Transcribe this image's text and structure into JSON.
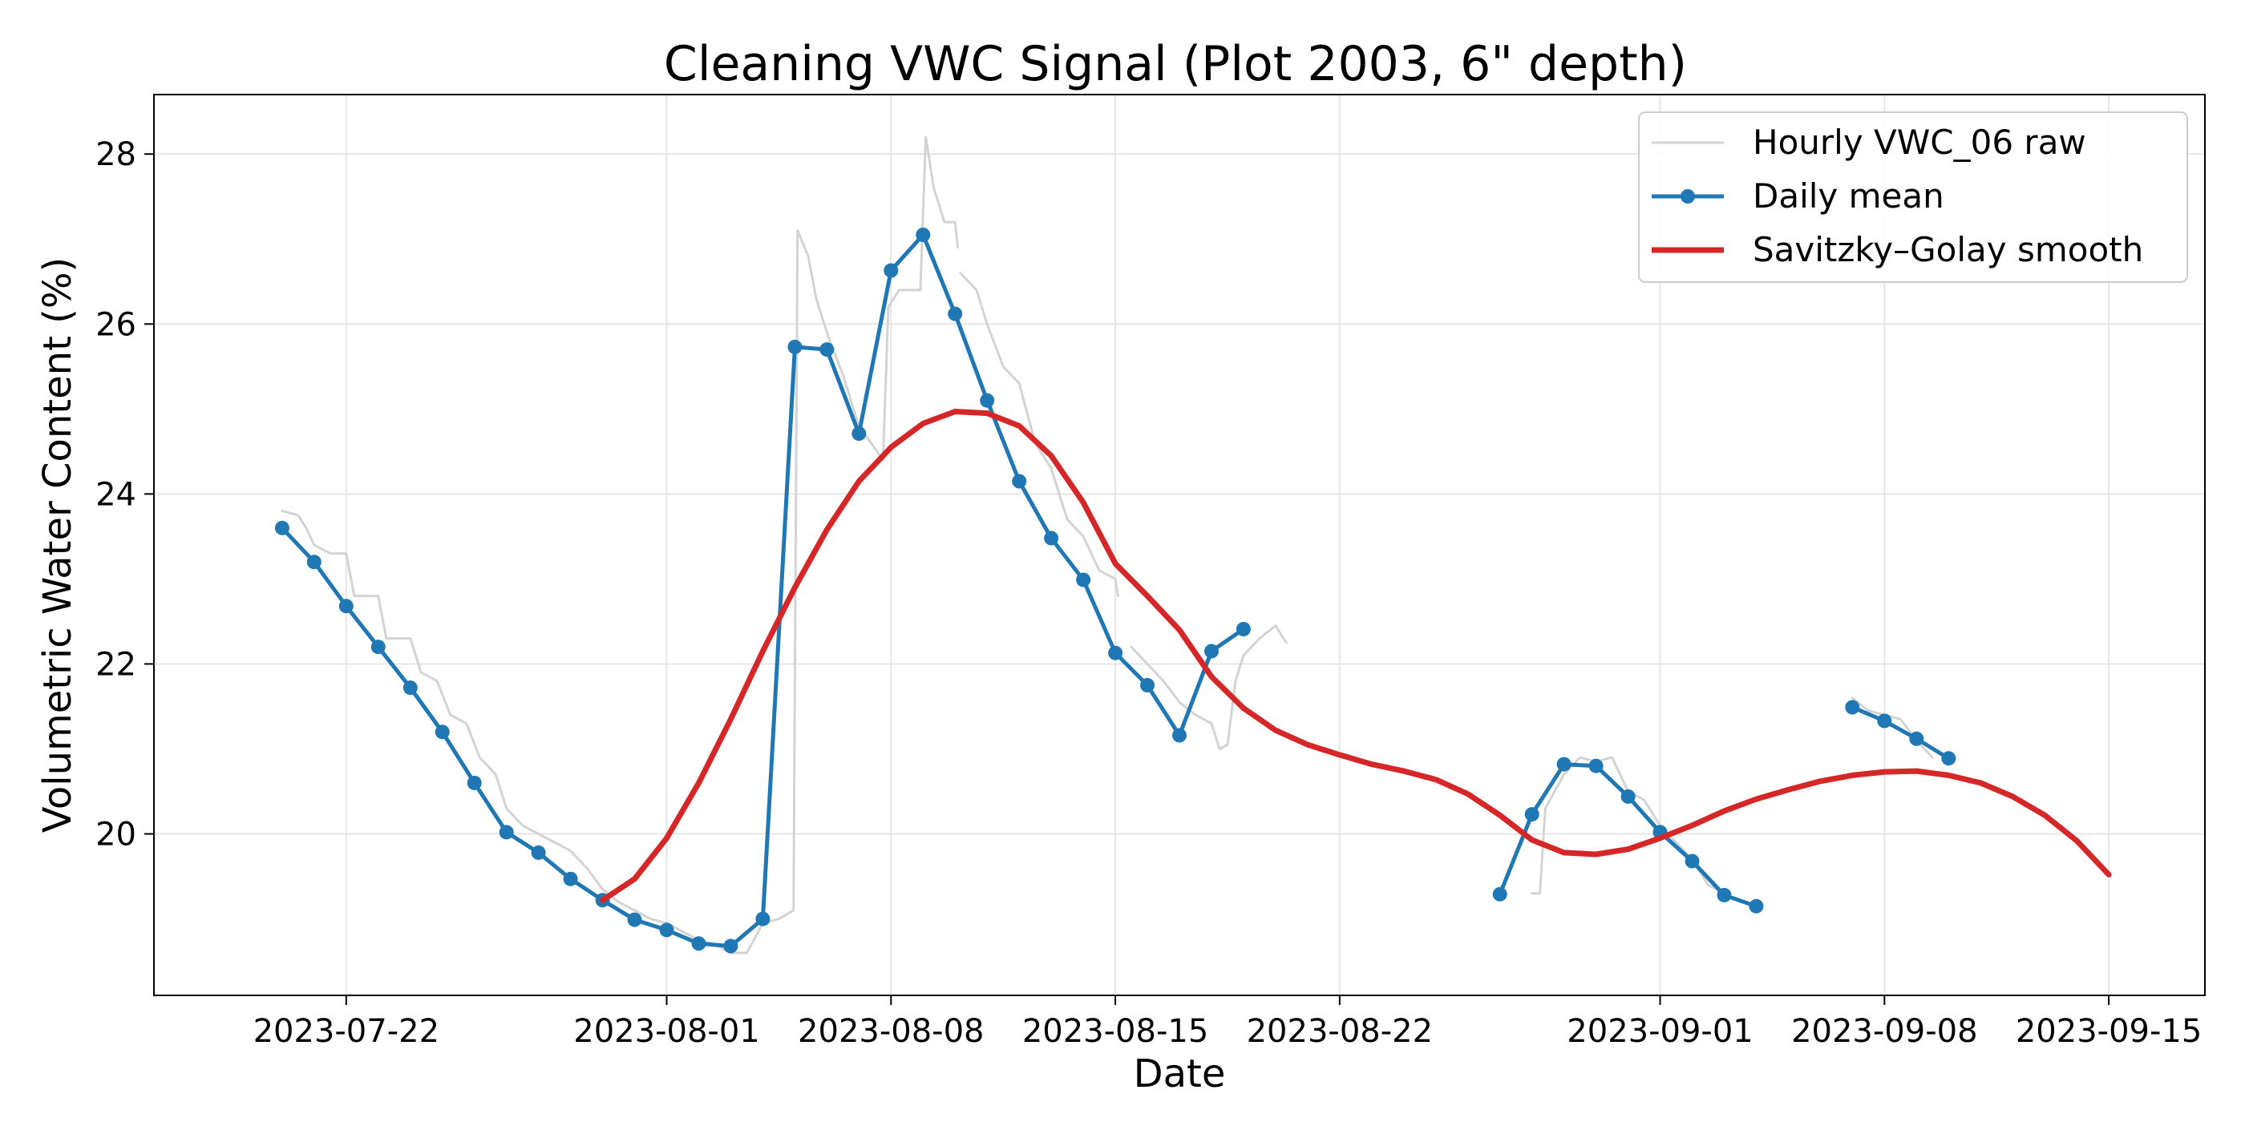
{
  "chart_data": {
    "type": "line",
    "title": "Cleaning VWC Signal (Plot 2003, 6\" depth)",
    "xlabel": "Date",
    "ylabel": "Volumetric Water Content (%)",
    "x_range": [
      "2023-07-16",
      "2023-09-18"
    ],
    "ylim": [
      18.1,
      28.7
    ],
    "yticks": [
      20,
      22,
      24,
      26,
      28
    ],
    "xticks": [
      "2023-07-22",
      "2023-08-01",
      "2023-08-08",
      "2023-08-15",
      "2023-08-22",
      "2023-09-01",
      "2023-09-08",
      "2023-09-15"
    ],
    "grid": true,
    "legend_position": "top-right",
    "series": [
      {
        "name": "Hourly VWC_06 raw",
        "style": "thin-line",
        "color": "#d3d3d3",
        "segments": [
          [
            [
              "2023-07-20T00",
              23.8
            ],
            [
              "2023-07-20T12",
              23.75
            ],
            [
              "2023-07-20T18",
              23.6
            ],
            [
              "2023-07-21T00",
              23.4
            ],
            [
              "2023-07-21T12",
              23.3
            ],
            [
              "2023-07-22T00",
              23.3
            ],
            [
              "2023-07-22T06",
              22.8
            ],
            [
              "2023-07-22T12",
              22.8
            ],
            [
              "2023-07-23T00",
              22.8
            ],
            [
              "2023-07-23T06",
              22.3
            ],
            [
              "2023-07-24T00",
              22.3
            ],
            [
              "2023-07-24T08",
              21.9
            ],
            [
              "2023-07-24T20",
              21.8
            ],
            [
              "2023-07-25T06",
              21.4
            ],
            [
              "2023-07-25T18",
              21.3
            ],
            [
              "2023-07-26T04",
              20.9
            ],
            [
              "2023-07-26T16",
              20.7
            ],
            [
              "2023-07-27T00",
              20.3
            ],
            [
              "2023-07-27T12",
              20.1
            ],
            [
              "2023-07-28T00",
              20.0
            ],
            [
              "2023-07-28T12",
              19.9
            ],
            [
              "2023-07-29T00",
              19.8
            ],
            [
              "2023-07-29T12",
              19.6
            ],
            [
              "2023-07-30T00",
              19.35
            ],
            [
              "2023-07-30T12",
              19.2
            ],
            [
              "2023-07-31T00",
              19.1
            ],
            [
              "2023-07-31T12",
              19.0
            ],
            [
              "2023-08-01T00",
              18.95
            ],
            [
              "2023-08-01T12",
              18.85
            ],
            [
              "2023-08-02T00",
              18.75
            ],
            [
              "2023-08-02T12",
              18.7
            ],
            [
              "2023-08-03T00",
              18.6
            ],
            [
              "2023-08-03T12",
              18.6
            ],
            [
              "2023-08-04T00",
              18.95
            ],
            [
              "2023-08-04T12",
              19.0
            ],
            [
              "2023-08-04T23",
              19.1
            ],
            [
              "2023-08-05T02",
              27.1
            ],
            [
              "2023-08-05T10",
              26.8
            ],
            [
              "2023-08-05T16",
              26.3
            ],
            [
              "2023-08-06T00",
              25.9
            ],
            [
              "2023-08-06T12",
              25.4
            ],
            [
              "2023-08-07T00",
              24.8
            ],
            [
              "2023-08-07T18",
              24.4
            ],
            [
              "2023-08-07T22",
              26.2
            ],
            [
              "2023-08-08T06",
              26.4
            ],
            [
              "2023-08-08T22",
              26.4
            ],
            [
              "2023-08-09T02",
              28.2
            ],
            [
              "2023-08-09T08",
              27.6
            ],
            [
              "2023-08-09T16",
              27.2
            ],
            [
              "2023-08-10T00",
              27.2
            ],
            [
              "2023-08-10T02",
              26.9
            ]
          ],
          [
            [
              "2023-08-10T04",
              26.6
            ],
            [
              "2023-08-10T16",
              26.4
            ],
            [
              "2023-08-11T00",
              26.0
            ],
            [
              "2023-08-11T12",
              25.5
            ],
            [
              "2023-08-12T00",
              25.3
            ],
            [
              "2023-08-12T12",
              24.6
            ],
            [
              "2023-08-13T00",
              24.3
            ],
            [
              "2023-08-13T12",
              23.7
            ],
            [
              "2023-08-14T00",
              23.5
            ],
            [
              "2023-08-14T12",
              23.1
            ],
            [
              "2023-08-15T00",
              23.0
            ],
            [
              "2023-08-15T02",
              22.8
            ]
          ],
          [
            [
              "2023-08-15T12",
              22.2
            ],
            [
              "2023-08-16T00",
              22.0
            ],
            [
              "2023-08-16T12",
              21.8
            ],
            [
              "2023-08-17T00",
              21.55
            ],
            [
              "2023-08-17T12",
              21.4
            ],
            [
              "2023-08-18T00",
              21.3
            ],
            [
              "2023-08-18T06",
              21.0
            ],
            [
              "2023-08-18T12",
              21.05
            ],
            [
              "2023-08-18T18",
              21.8
            ],
            [
              "2023-08-19T00",
              22.1
            ],
            [
              "2023-08-19T12",
              22.3
            ],
            [
              "2023-08-20T00",
              22.45
            ],
            [
              "2023-08-20T08",
              22.25
            ]
          ],
          [
            [
              "2023-08-28T00",
              19.3
            ],
            [
              "2023-08-28T06",
              19.3
            ],
            [
              "2023-08-28T10",
              20.3
            ],
            [
              "2023-08-29T00",
              20.7
            ],
            [
              "2023-08-29T12",
              20.9
            ],
            [
              "2023-08-30T00",
              20.85
            ],
            [
              "2023-08-30T12",
              20.9
            ],
            [
              "2023-08-31T00",
              20.5
            ],
            [
              "2023-08-31T12",
              20.4
            ],
            [
              "2023-09-01T00",
              20.1
            ],
            [
              "2023-09-01T12",
              19.9
            ],
            [
              "2023-09-02T00",
              19.7
            ],
            [
              "2023-09-02T12",
              19.4
            ],
            [
              "2023-09-03T00",
              19.3
            ]
          ],
          [
            [
              "2023-09-07T00",
              21.6
            ],
            [
              "2023-09-07T12",
              21.45
            ],
            [
              "2023-09-08T00",
              21.4
            ],
            [
              "2023-09-08T12",
              21.35
            ],
            [
              "2023-09-09T00",
              21.1
            ],
            [
              "2023-09-09T12",
              20.9
            ]
          ]
        ]
      },
      {
        "name": "Daily mean",
        "style": "line-markers",
        "color": "#1f77b4",
        "segments": [
          [
            [
              "2023-07-20",
              23.6
            ],
            [
              "2023-07-21",
              23.2
            ],
            [
              "2023-07-22",
              22.68
            ],
            [
              "2023-07-23",
              22.2
            ],
            [
              "2023-07-24",
              21.72
            ],
            [
              "2023-07-25",
              21.2
            ],
            [
              "2023-07-26",
              20.6
            ],
            [
              "2023-07-27",
              20.02
            ],
            [
              "2023-07-28",
              19.78
            ],
            [
              "2023-07-29",
              19.47
            ],
            [
              "2023-07-30",
              19.22
            ],
            [
              "2023-07-31",
              18.99
            ],
            [
              "2023-08-01",
              18.87
            ],
            [
              "2023-08-02",
              18.71
            ],
            [
              "2023-08-03",
              18.68
            ],
            [
              "2023-08-04",
              19.0
            ],
            [
              "2023-08-05",
              25.73
            ],
            [
              "2023-08-06",
              25.7
            ],
            [
              "2023-08-07",
              24.71
            ],
            [
              "2023-08-08",
              26.63
            ],
            [
              "2023-08-09",
              27.05
            ],
            [
              "2023-08-10",
              26.12
            ],
            [
              "2023-08-11",
              25.1
            ],
            [
              "2023-08-12",
              24.15
            ],
            [
              "2023-08-13",
              23.48
            ],
            [
              "2023-08-14",
              22.99
            ],
            [
              "2023-08-15",
              22.13
            ],
            [
              "2023-08-16",
              21.75
            ],
            [
              "2023-08-17",
              21.16
            ],
            [
              "2023-08-18",
              22.15
            ],
            [
              "2023-08-19",
              22.41
            ]
          ],
          [
            [
              "2023-08-27",
              19.29
            ],
            [
              "2023-08-28",
              20.23
            ],
            [
              "2023-08-29",
              20.82
            ],
            [
              "2023-08-30",
              20.8
            ],
            [
              "2023-08-31",
              20.44
            ],
            [
              "2023-09-01",
              20.02
            ],
            [
              "2023-09-02",
              19.68
            ],
            [
              "2023-09-03",
              19.28
            ],
            [
              "2023-09-04",
              19.15
            ]
          ],
          [
            [
              "2023-09-07",
              21.49
            ],
            [
              "2023-09-08",
              21.33
            ],
            [
              "2023-09-09",
              21.12
            ],
            [
              "2023-09-10",
              20.89
            ]
          ]
        ]
      },
      {
        "name": "Savitzky–Golay smooth",
        "style": "thick-line",
        "color": "#d62728",
        "segments": [
          [
            [
              "2023-07-30",
              19.22
            ],
            [
              "2023-07-31",
              19.47
            ],
            [
              "2023-08-01",
              19.95
            ],
            [
              "2023-08-02",
              20.6
            ],
            [
              "2023-08-03",
              21.35
            ],
            [
              "2023-08-04",
              22.15
            ],
            [
              "2023-08-05",
              22.9
            ],
            [
              "2023-08-06",
              23.58
            ],
            [
              "2023-08-07",
              24.15
            ],
            [
              "2023-08-08",
              24.55
            ],
            [
              "2023-08-09",
              24.83
            ],
            [
              "2023-08-10",
              24.97
            ],
            [
              "2023-08-11",
              24.95
            ],
            [
              "2023-08-12",
              24.8
            ],
            [
              "2023-08-13",
              24.45
            ],
            [
              "2023-08-14",
              23.9
            ],
            [
              "2023-08-15",
              23.18
            ],
            [
              "2023-08-16",
              22.8
            ],
            [
              "2023-08-17",
              22.4
            ],
            [
              "2023-08-18",
              21.85
            ],
            [
              "2023-08-19",
              21.48
            ],
            [
              "2023-08-20",
              21.22
            ],
            [
              "2023-08-21",
              21.05
            ],
            [
              "2023-08-22",
              20.93
            ],
            [
              "2023-08-23",
              20.82
            ],
            [
              "2023-08-24",
              20.74
            ],
            [
              "2023-08-25",
              20.64
            ],
            [
              "2023-08-26",
              20.47
            ],
            [
              "2023-08-27",
              20.22
            ],
            [
              "2023-08-28",
              19.93
            ],
            [
              "2023-08-29",
              19.78
            ],
            [
              "2023-08-30",
              19.76
            ],
            [
              "2023-08-31",
              19.82
            ],
            [
              "2023-09-01",
              19.95
            ],
            [
              "2023-09-02",
              20.1
            ],
            [
              "2023-09-03",
              20.27
            ],
            [
              "2023-09-04",
              20.41
            ],
            [
              "2023-09-05",
              20.52
            ],
            [
              "2023-09-06",
              20.62
            ],
            [
              "2023-09-07",
              20.69
            ],
            [
              "2023-09-08",
              20.73
            ],
            [
              "2023-09-09",
              20.74
            ],
            [
              "2023-09-10",
              20.69
            ],
            [
              "2023-09-11",
              20.6
            ],
            [
              "2023-09-12",
              20.44
            ],
            [
              "2023-09-13",
              20.22
            ],
            [
              "2023-09-14",
              19.92
            ],
            [
              "2023-09-15",
              19.52
            ]
          ]
        ]
      }
    ]
  }
}
